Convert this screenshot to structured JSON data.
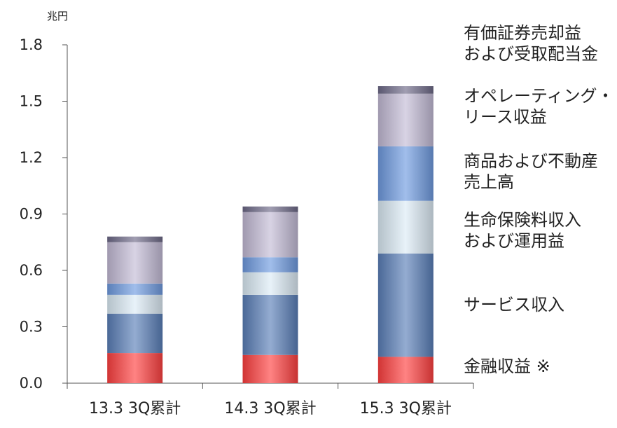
{
  "chart_data": {
    "type": "bar",
    "stacked": true,
    "title": "",
    "xlabel": "",
    "ylabel": "兆円",
    "ylim": [
      0,
      1.8
    ],
    "yticks": [
      "0.0",
      "0.3",
      "0.6",
      "0.9",
      "1.2",
      "1.5",
      "1.8"
    ],
    "categories": [
      "13.3 3Q累計",
      "14.3 3Q累計",
      "15.3 3Q累計"
    ],
    "series": [
      {
        "name": "金融収益 ※",
        "color": "#ff4040",
        "values": [
          0.16,
          0.15,
          0.14
        ]
      },
      {
        "name": "サービス収入",
        "color": "#5a7fb8",
        "values": [
          0.21,
          0.32,
          0.55
        ]
      },
      {
        "name": "生命保険料収入\nおよび運用益",
        "color": "#dcebf5",
        "values": [
          0.1,
          0.12,
          0.28
        ]
      },
      {
        "name": "商品および不動産\n売上高",
        "color": "#6f9be0",
        "values": [
          0.06,
          0.08,
          0.29
        ]
      },
      {
        "name": "オペレーティング・\nリース収益",
        "color": "#c3bbd6",
        "values": [
          0.22,
          0.24,
          0.28
        ]
      },
      {
        "name": "有価証券売却益\nおよび受取配当金",
        "color": "#6e6a88",
        "values": [
          0.03,
          0.03,
          0.04
        ]
      }
    ],
    "legend_placement": "right",
    "grid": false
  }
}
